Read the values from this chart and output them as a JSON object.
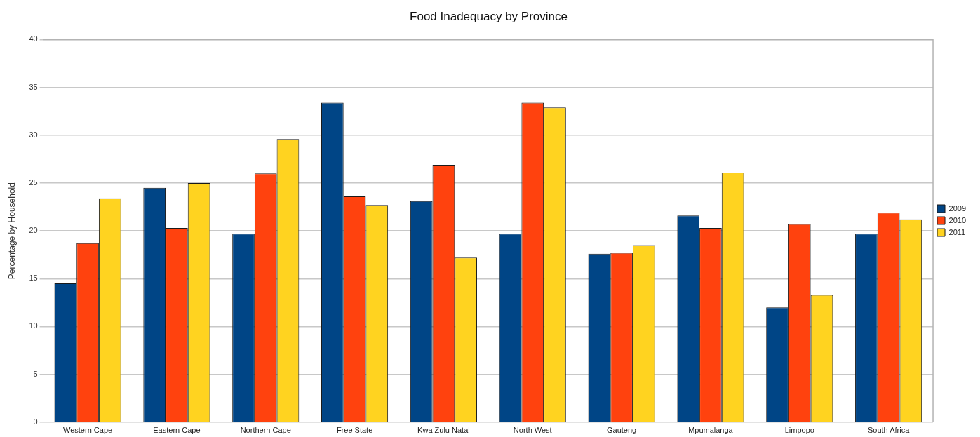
{
  "chart_data": {
    "type": "bar",
    "title": "Food Inadequacy by Province",
    "ylabel": "Percentage by Household",
    "categories": [
      "Western Cape",
      "Eastern Cape",
      "Northern Cape",
      "Free State",
      "Kwa Zulu Natal",
      "North West",
      "Gauteng",
      "Mpumalanga",
      "Limpopo",
      "South Africa"
    ],
    "series": [
      {
        "name": "2009",
        "color": "#004586",
        "values": [
          14.5,
          24.5,
          19.7,
          33.4,
          23.1,
          19.7,
          17.6,
          21.6,
          12.0,
          19.7
        ]
      },
      {
        "name": "2010",
        "color": "#ff420e",
        "values": [
          18.7,
          20.3,
          26.0,
          23.6,
          26.9,
          33.4,
          17.7,
          20.3,
          20.7,
          21.9
        ]
      },
      {
        "name": "2011",
        "color": "#ffd320",
        "values": [
          23.4,
          25.0,
          29.6,
          22.7,
          17.2,
          32.9,
          18.5,
          26.1,
          13.3,
          21.2
        ]
      }
    ],
    "ylim": [
      0,
      40
    ],
    "yticks": [
      0,
      5,
      10,
      15,
      20,
      25,
      30,
      35,
      40
    ],
    "grid": "y",
    "legend": "right"
  }
}
